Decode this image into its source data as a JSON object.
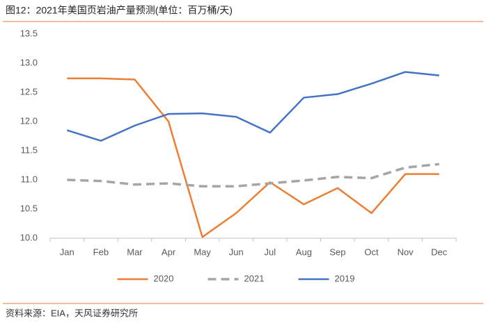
{
  "chart_data": {
    "type": "line",
    "title": "图12：2021年美国页岩油产量预测(单位：百万桶/天)",
    "source": "资料来源：EIA，天风证券研究所",
    "categories": [
      "Jan",
      "Feb",
      "Mar",
      "Apr",
      "May",
      "Jun",
      "Jul",
      "Aug",
      "Sep",
      "Oct",
      "Nov",
      "Dec"
    ],
    "series": [
      {
        "name": "2020",
        "color": "#ED7D31",
        "dashed": false,
        "values": [
          12.74,
          12.74,
          12.72,
          12.0,
          10.02,
          10.43,
          10.96,
          10.58,
          10.86,
          10.43,
          11.1,
          11.1
        ]
      },
      {
        "name": "2021",
        "color": "#A5A5A5",
        "dashed": true,
        "values": [
          11.0,
          10.98,
          10.92,
          10.94,
          10.89,
          10.89,
          10.94,
          10.99,
          11.05,
          11.03,
          11.21,
          11.27
        ]
      },
      {
        "name": "2019",
        "color": "#4472C4",
        "dashed": false,
        "values": [
          11.85,
          11.67,
          11.93,
          12.13,
          12.14,
          12.08,
          11.81,
          12.41,
          12.47,
          12.65,
          12.85,
          12.79
        ]
      }
    ],
    "ylim": [
      10,
      13.5
    ],
    "yticks": [
      {
        "value": 10,
        "label": "10.0"
      },
      10.5,
      {
        "value": 11,
        "label": "11.0"
      },
      11.5,
      {
        "value": 12,
        "label": "12.0"
      },
      12.5,
      {
        "value": 13,
        "label": "13.0"
      },
      13.5
    ],
    "grid": false,
    "legend": "bottom"
  }
}
